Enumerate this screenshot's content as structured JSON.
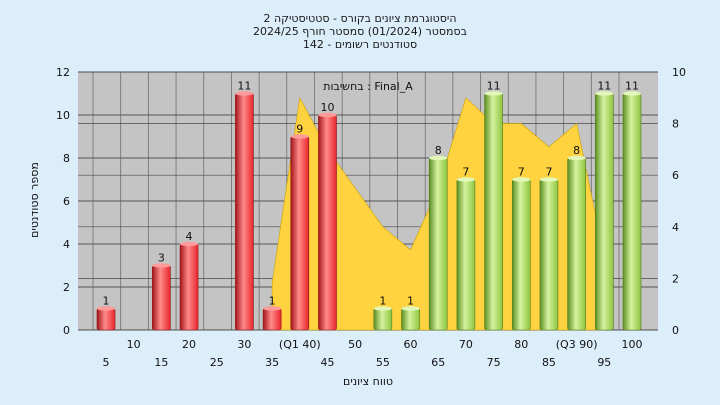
{
  "title_lines": [
    "היסטוגרמת ציונים בקורס - סטטיסטיקה 2",
    "בסמסטר  (01/2024)  סמסטר חורף 2024/25",
    "סטודנטים רשומים - 142"
  ],
  "colors": {
    "background": "#ddeefb",
    "plot_bg": "#c4c4c4",
    "red_bar": "#e8262c",
    "green_bar": "#8ec63f",
    "area": "#ffd23f"
  },
  "chart_data": {
    "type": "bar",
    "title": "היסטוגרמת ציונים בקורס - סטטיסטיקה 2",
    "xlabel": "טווח ציונים",
    "ylabel": "מספר סטודנטים",
    "annotation": "בחשיבות : Final_A",
    "ylim": [
      0,
      12
    ],
    "y_ticks": [
      "0",
      "2",
      "4",
      "6",
      "8",
      "10",
      "12"
    ],
    "y2lim": [
      0,
      10
    ],
    "y2_ticks": [
      "0",
      "2",
      "4",
      "6",
      "8",
      "10"
    ],
    "grid": true,
    "x_tick_labels": [
      {
        "label": "5",
        "x": 5
      },
      {
        "label": "10",
        "x": 10
      },
      {
        "label": "15",
        "x": 15
      },
      {
        "label": "20",
        "x": 20
      },
      {
        "label": "25",
        "x": 25
      },
      {
        "label": "30",
        "x": 30
      },
      {
        "label": "35",
        "x": 35
      },
      {
        "label": "(Q1 40)",
        "x": 40
      },
      {
        "label": "45",
        "x": 45
      },
      {
        "label": "50",
        "x": 50
      },
      {
        "label": "55",
        "x": 55
      },
      {
        "label": "60",
        "x": 60
      },
      {
        "label": "65",
        "x": 65
      },
      {
        "label": "70",
        "x": 70
      },
      {
        "label": "75",
        "x": 75
      },
      {
        "label": "80",
        "x": 80
      },
      {
        "label": "85",
        "x": 85
      },
      {
        "label": "(Q3 90)",
        "x": 90
      },
      {
        "label": "95",
        "x": 95
      },
      {
        "label": "100",
        "x": 100
      }
    ],
    "bars": [
      {
        "x": 5,
        "value": 1,
        "color": "red"
      },
      {
        "x": 10,
        "value": 0,
        "color": "red"
      },
      {
        "x": 15,
        "value": 3,
        "color": "red"
      },
      {
        "x": 20,
        "value": 4,
        "color": "red"
      },
      {
        "x": 25,
        "value": 0,
        "color": "red"
      },
      {
        "x": 30,
        "value": 11,
        "color": "red"
      },
      {
        "x": 35,
        "value": 1,
        "color": "red"
      },
      {
        "x": 40,
        "value": 9,
        "color": "red"
      },
      {
        "x": 45,
        "value": 10,
        "color": "red"
      },
      {
        "x": 50,
        "value": 0,
        "color": "red"
      },
      {
        "x": 55,
        "value": 1,
        "color": "green"
      },
      {
        "x": 60,
        "value": 1,
        "color": "green"
      },
      {
        "x": 65,
        "value": 8,
        "color": "green"
      },
      {
        "x": 70,
        "value": 7,
        "color": "green"
      },
      {
        "x": 75,
        "value": 11,
        "color": "green"
      },
      {
        "x": 80,
        "value": 7,
        "color": "green"
      },
      {
        "x": 85,
        "value": 7,
        "color": "green"
      },
      {
        "x": 90,
        "value": 8,
        "color": "green"
      },
      {
        "x": 95,
        "value": 11,
        "color": "green"
      },
      {
        "x": 100,
        "value": 11,
        "color": "green"
      }
    ],
    "area_series": {
      "points": [
        {
          "x": 35,
          "y": 1.8
        },
        {
          "x": 40,
          "y": 9.0
        },
        {
          "x": 45,
          "y": 7.0
        },
        {
          "x": 50,
          "y": 5.5
        },
        {
          "x": 55,
          "y": 4.0
        },
        {
          "x": 60,
          "y": 3.1
        },
        {
          "x": 65,
          "y": 5.5
        },
        {
          "x": 70,
          "y": 9.0
        },
        {
          "x": 75,
          "y": 8.0
        },
        {
          "x": 80,
          "y": 8.0
        },
        {
          "x": 85,
          "y": 7.1
        },
        {
          "x": 90,
          "y": 8.0
        },
        {
          "x": 95,
          "y": 2.8
        }
      ]
    }
  }
}
